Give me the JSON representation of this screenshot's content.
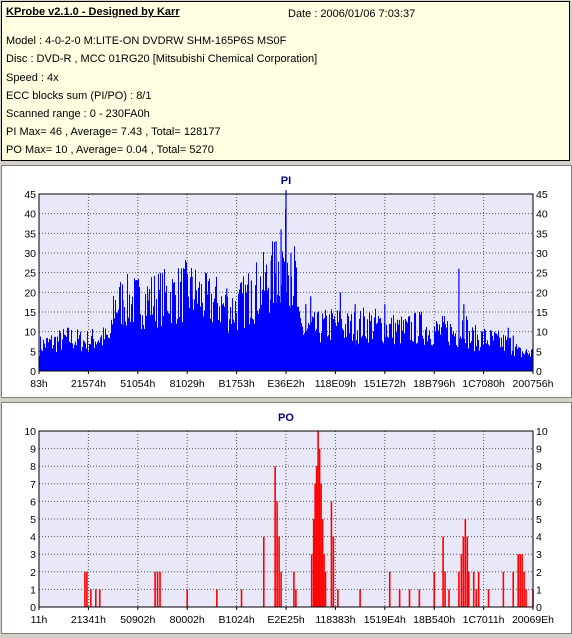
{
  "info": {
    "title": "KProbe v2.1.0 - Designed by Karr",
    "date": "Date : 2006/01/06 7:03:37",
    "model": "Model : 4-0-2-0 M:LITE-ON DVDRW SHM-165P6S MS0F",
    "disc": "Disc : DVD-R , MCC 01RG20  [Mitsubishi Chemical Corporation]",
    "speed": "Speed : 4x",
    "ecc": "ECC blocks sum (PI/PO) : 8/1",
    "range": "Scanned range : 0 - 230FA0h",
    "pi": "PI Max= 46 , Average= 7.43 , Total= 128177",
    "po": "PO Max= 10 , Average= 0.04 , Total= 5270"
  },
  "colors": {
    "plot_bg": "#e8e8f8",
    "pi": "#0000ff",
    "po": "#ff0000",
    "title": "#000080"
  },
  "chart_data": [
    {
      "type": "area",
      "title": "PI",
      "ylim": [
        0,
        45
      ],
      "yticks": [
        "0",
        "5",
        "10",
        "15",
        "20",
        "25",
        "30",
        "35",
        "40",
        "45"
      ],
      "xticks": [
        "83h",
        "21574h",
        "51054h",
        "81029h",
        "B1753h",
        "E36E2h",
        "118E09h",
        "151E72h",
        "18B796h",
        "1C7080h",
        "200756h"
      ],
      "profile": [
        [
          0,
          7
        ],
        [
          3,
          8
        ],
        [
          6,
          9
        ],
        [
          9,
          8
        ],
        [
          12,
          9
        ],
        [
          14.5,
          9
        ],
        [
          15,
          18
        ],
        [
          17,
          19
        ],
        [
          20,
          19
        ],
        [
          24,
          20
        ],
        [
          28,
          21
        ],
        [
          30,
          22
        ],
        [
          32,
          21
        ],
        [
          34,
          19
        ],
        [
          36,
          19
        ],
        [
          38,
          17
        ],
        [
          40,
          17
        ],
        [
          42,
          20
        ],
        [
          44,
          22
        ],
        [
          46,
          24
        ],
        [
          48,
          27
        ],
        [
          49.5,
          30
        ],
        [
          50,
          33
        ],
        [
          51,
          28
        ],
        [
          52,
          24
        ],
        [
          52.5,
          12
        ],
        [
          54,
          11
        ],
        [
          57,
          12
        ],
        [
          60,
          13
        ],
        [
          62,
          12
        ],
        [
          64,
          12
        ],
        [
          66,
          13
        ],
        [
          70,
          12
        ],
        [
          74,
          11
        ],
        [
          77,
          12
        ],
        [
          80,
          11
        ],
        [
          83,
          11
        ],
        [
          85,
          10
        ],
        [
          86,
          14
        ],
        [
          87,
          9
        ],
        [
          90,
          9
        ],
        [
          93,
          8
        ],
        [
          96,
          7
        ],
        [
          97,
          5
        ],
        [
          100,
          5
        ]
      ],
      "spikes": [
        [
          17,
          18
        ],
        [
          22,
          20
        ],
        [
          31,
          24
        ],
        [
          38,
          21
        ],
        [
          43,
          23
        ],
        [
          47,
          28
        ],
        [
          48,
          33
        ],
        [
          49,
          36
        ],
        [
          50,
          46
        ],
        [
          51,
          30
        ],
        [
          52,
          21
        ],
        [
          54,
          17
        ],
        [
          55,
          19
        ],
        [
          61,
          20
        ],
        [
          64,
          17
        ],
        [
          70,
          17
        ],
        [
          75,
          14
        ],
        [
          85,
          26
        ],
        [
          86,
          17
        ],
        [
          95,
          11
        ],
        [
          96,
          9
        ]
      ]
    },
    {
      "type": "bar",
      "title": "PO",
      "ylim": [
        0,
        10
      ],
      "yticks": [
        "0",
        "1",
        "2",
        "3",
        "4",
        "5",
        "6",
        "7",
        "8",
        "9",
        "10"
      ],
      "xticks": [
        "11h",
        "21341h",
        "50902h",
        "80002h",
        "B1024h",
        "E2E25h",
        "118383h",
        "1519E4h",
        "18B540h",
        "1C7011h",
        "20069Eh"
      ],
      "bars": [
        [
          9.3,
          2
        ],
        [
          9.7,
          2
        ],
        [
          10.5,
          1
        ],
        [
          11.5,
          1
        ],
        [
          12.3,
          1
        ],
        [
          23.5,
          2
        ],
        [
          24.0,
          2
        ],
        [
          24.5,
          2
        ],
        [
          30.0,
          1
        ],
        [
          36.0,
          1
        ],
        [
          41.0,
          1
        ],
        [
          45.5,
          4
        ],
        [
          47.8,
          8
        ],
        [
          48.2,
          6
        ],
        [
          48.6,
          4
        ],
        [
          49.0,
          2
        ],
        [
          51.6,
          2
        ],
        [
          52.0,
          1
        ],
        [
          55.2,
          3
        ],
        [
          55.6,
          5
        ],
        [
          55.9,
          7
        ],
        [
          56.2,
          8
        ],
        [
          56.5,
          10
        ],
        [
          56.8,
          9
        ],
        [
          57.1,
          7
        ],
        [
          57.4,
          5
        ],
        [
          57.7,
          3
        ],
        [
          58.0,
          2
        ],
        [
          59.2,
          6
        ],
        [
          59.6,
          4
        ],
        [
          60.5,
          1
        ],
        [
          65.0,
          1
        ],
        [
          71.0,
          2
        ],
        [
          73.0,
          1
        ],
        [
          75.0,
          1
        ],
        [
          77.0,
          1
        ],
        [
          80.0,
          2
        ],
        [
          81.8,
          4
        ],
        [
          82.2,
          2
        ],
        [
          83.0,
          1
        ],
        [
          85.0,
          2
        ],
        [
          85.5,
          3
        ],
        [
          85.9,
          4
        ],
        [
          86.3,
          5
        ],
        [
          86.7,
          4
        ],
        [
          87.0,
          2
        ],
        [
          88.0,
          2
        ],
        [
          88.5,
          1
        ],
        [
          89.0,
          2
        ],
        [
          91.0,
          1
        ],
        [
          94.0,
          2
        ],
        [
          96.0,
          2
        ],
        [
          97.0,
          3
        ],
        [
          97.4,
          3
        ],
        [
          97.8,
          3
        ],
        [
          98.2,
          2
        ],
        [
          98.6,
          1
        ],
        [
          100,
          1
        ]
      ]
    }
  ]
}
